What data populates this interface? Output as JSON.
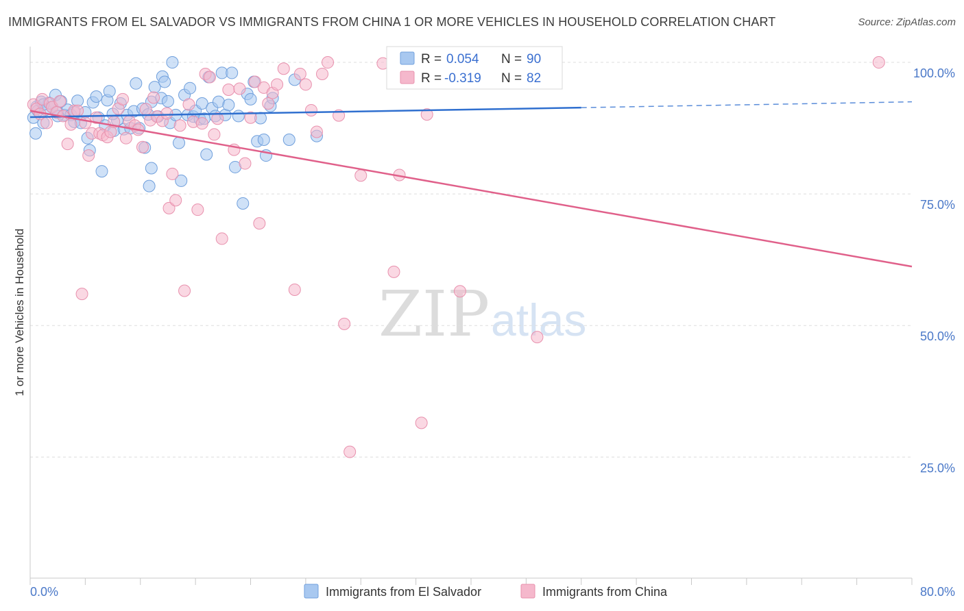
{
  "title": "IMMIGRANTS FROM EL SALVADOR VS IMMIGRANTS FROM CHINA 1 OR MORE VEHICLES IN HOUSEHOLD CORRELATION CHART",
  "source": "Source: ZipAtlas.com",
  "watermark": {
    "zip": "ZIP",
    "atlas": "atlas"
  },
  "colors": {
    "blue_fill": "#a8c8f0",
    "blue_stroke": "#6f9fdc",
    "blue_line": "#2f6fcf",
    "pink_fill": "#f5b8cc",
    "pink_stroke": "#e890ad",
    "pink_line": "#e0608a",
    "tick_label": "#4a78c8",
    "grid": "#dddddd"
  },
  "legend": {
    "rows": [
      {
        "r_label": "R =",
        "r_value": "0.054",
        "n_label": "N =",
        "n_value": "90"
      },
      {
        "r_label": "R =",
        "r_value": "-0.319",
        "n_label": "N =",
        "n_value": "82"
      }
    ]
  },
  "chart_data": {
    "type": "scatter",
    "title": "IMMIGRANTS FROM EL SALVADOR VS IMMIGRANTS FROM CHINA 1 OR MORE VEHICLES IN HOUSEHOLD CORRELATION CHART",
    "xlabel": "",
    "ylabel": "1 or more Vehicles in Household",
    "xlim": [
      0,
      80
    ],
    "ylim": [
      2,
      103
    ],
    "x_tick_labels": [
      "0.0%",
      "80.0%"
    ],
    "y_ticks": [
      25,
      50,
      75,
      100
    ],
    "y_tick_labels": [
      "25.0%",
      "50.0%",
      "75.0%",
      "100.0%"
    ],
    "grid": true,
    "legend_position": "top-center",
    "series": [
      {
        "name": "Immigrants from El Salvador",
        "color": "#a8c8f0",
        "r": 0.054,
        "n": 90,
        "trend": {
          "x": [
            0,
            50
          ],
          "y": [
            89.6,
            91.4
          ],
          "dashed_to": [
            80,
            92.5
          ]
        },
        "points": [
          [
            0.3,
            89.5
          ],
          [
            0.5,
            86.5
          ],
          [
            0.6,
            91.6
          ],
          [
            0.7,
            90.8
          ],
          [
            1.0,
            92.5
          ],
          [
            1.2,
            88.5
          ],
          [
            1.4,
            91.0
          ],
          [
            1.7,
            92.3
          ],
          [
            2.0,
            91.5
          ],
          [
            2.3,
            93.8
          ],
          [
            2.5,
            90.5
          ],
          [
            2.8,
            92.6
          ],
          [
            3.1,
            90.0
          ],
          [
            3.4,
            91.0
          ],
          [
            3.7,
            90.0
          ],
          [
            4.0,
            88.7
          ],
          [
            4.3,
            92.7
          ],
          [
            4.6,
            88.5
          ],
          [
            5.0,
            90.5
          ],
          [
            5.2,
            85.6
          ],
          [
            5.4,
            83.3
          ],
          [
            5.7,
            92.4
          ],
          [
            6.0,
            93.5
          ],
          [
            6.2,
            89.5
          ],
          [
            6.5,
            79.3
          ],
          [
            6.8,
            88.0
          ],
          [
            7.0,
            92.8
          ],
          [
            7.2,
            94.5
          ],
          [
            7.6,
            87.0
          ],
          [
            7.9,
            89.0
          ],
          [
            8.2,
            92.2
          ],
          [
            8.5,
            87.3
          ],
          [
            8.8,
            90.0
          ],
          [
            9.1,
            87.5
          ],
          [
            9.4,
            90.7
          ],
          [
            9.6,
            96.0
          ],
          [
            9.9,
            87.5
          ],
          [
            10.2,
            91.2
          ],
          [
            10.4,
            83.8
          ],
          [
            10.7,
            90.1
          ],
          [
            10.8,
            76.5
          ],
          [
            11.0,
            92.5
          ],
          [
            11.0,
            79.9
          ],
          [
            11.3,
            95.3
          ],
          [
            11.6,
            89.7
          ],
          [
            11.9,
            93.2
          ],
          [
            12.0,
            97.3
          ],
          [
            12.2,
            96.3
          ],
          [
            12.5,
            92.6
          ],
          [
            12.7,
            88.5
          ],
          [
            12.9,
            100.0
          ],
          [
            13.2,
            90.0
          ],
          [
            13.5,
            84.7
          ],
          [
            13.7,
            77.5
          ],
          [
            14.0,
            93.8
          ],
          [
            14.3,
            90.0
          ],
          [
            14.5,
            95.1
          ],
          [
            14.8,
            89.7
          ],
          [
            15.0,
            90.8
          ],
          [
            15.4,
            89.2
          ],
          [
            15.6,
            92.2
          ],
          [
            15.8,
            89.3
          ],
          [
            16.0,
            82.5
          ],
          [
            16.2,
            97.2
          ],
          [
            16.5,
            91.3
          ],
          [
            16.8,
            89.8
          ],
          [
            17.1,
            92.5
          ],
          [
            17.4,
            98.0
          ],
          [
            17.7,
            90.0
          ],
          [
            18.0,
            91.9
          ],
          [
            18.3,
            98.0
          ],
          [
            18.6,
            80.1
          ],
          [
            18.9,
            89.8
          ],
          [
            19.3,
            73.2
          ],
          [
            19.7,
            94.0
          ],
          [
            20.0,
            93.0
          ],
          [
            20.3,
            96.3
          ],
          [
            20.6,
            85.0
          ],
          [
            20.9,
            89.4
          ],
          [
            21.2,
            85.3
          ],
          [
            21.4,
            82.3
          ],
          [
            21.8,
            91.7
          ],
          [
            22.0,
            93.2
          ],
          [
            23.5,
            85.3
          ],
          [
            24.0,
            96.7
          ],
          [
            26.0,
            86.0
          ],
          [
            1.2,
            92.0
          ],
          [
            2.5,
            89.8
          ],
          [
            4.0,
            90.5
          ],
          [
            7.5,
            90.2
          ]
        ]
      },
      {
        "name": "Immigrants from China",
        "color": "#f5b8cc",
        "r": -0.319,
        "n": 82,
        "trend": {
          "x": [
            0,
            80
          ],
          "y": [
            90.8,
            61.2
          ]
        },
        "points": [
          [
            0.3,
            92.0
          ],
          [
            0.6,
            91.2
          ],
          [
            0.9,
            90.2
          ],
          [
            1.1,
            93.0
          ],
          [
            1.5,
            88.5
          ],
          [
            1.8,
            92.2
          ],
          [
            2.0,
            91.5
          ],
          [
            2.4,
            90.5
          ],
          [
            2.7,
            92.6
          ],
          [
            3.0,
            89.8
          ],
          [
            3.4,
            84.5
          ],
          [
            3.7,
            88.2
          ],
          [
            4.0,
            90.8
          ],
          [
            4.3,
            90.8
          ],
          [
            4.7,
            56.0
          ],
          [
            5.0,
            88.5
          ],
          [
            5.3,
            82.3
          ],
          [
            5.6,
            86.5
          ],
          [
            6.0,
            89.5
          ],
          [
            6.3,
            86.5
          ],
          [
            6.6,
            86.2
          ],
          [
            7.0,
            85.8
          ],
          [
            7.3,
            86.8
          ],
          [
            7.6,
            88.7
          ],
          [
            8.0,
            91.2
          ],
          [
            8.4,
            93.0
          ],
          [
            8.7,
            85.6
          ],
          [
            9.0,
            88.8
          ],
          [
            9.5,
            88.0
          ],
          [
            9.8,
            87.2
          ],
          [
            10.2,
            83.9
          ],
          [
            10.5,
            91.1
          ],
          [
            10.9,
            89.0
          ],
          [
            11.2,
            93.3
          ],
          [
            11.5,
            89.7
          ],
          [
            12.0,
            88.9
          ],
          [
            12.4,
            90.3
          ],
          [
            12.6,
            72.3
          ],
          [
            12.9,
            78.8
          ],
          [
            13.2,
            73.8
          ],
          [
            13.6,
            88.0
          ],
          [
            14.0,
            56.6
          ],
          [
            14.4,
            92.0
          ],
          [
            14.8,
            88.7
          ],
          [
            15.2,
            72.0
          ],
          [
            15.6,
            88.4
          ],
          [
            15.9,
            97.8
          ],
          [
            16.3,
            97.2
          ],
          [
            16.7,
            86.3
          ],
          [
            17.0,
            89.3
          ],
          [
            17.4,
            66.5
          ],
          [
            18.0,
            94.8
          ],
          [
            18.5,
            83.4
          ],
          [
            19.0,
            95.0
          ],
          [
            19.5,
            80.8
          ],
          [
            20.0,
            89.5
          ],
          [
            20.4,
            96.3
          ],
          [
            20.8,
            69.4
          ],
          [
            21.2,
            95.2
          ],
          [
            21.6,
            92.2
          ],
          [
            22.0,
            94.2
          ],
          [
            22.4,
            95.8
          ],
          [
            23.0,
            98.8
          ],
          [
            24.0,
            56.8
          ],
          [
            24.5,
            97.8
          ],
          [
            25.0,
            95.8
          ],
          [
            25.5,
            90.9
          ],
          [
            26.0,
            86.8
          ],
          [
            26.5,
            97.8
          ],
          [
            27.0,
            100.0
          ],
          [
            28.0,
            89.9
          ],
          [
            28.5,
            50.3
          ],
          [
            29.0,
            26.0
          ],
          [
            30.0,
            78.5
          ],
          [
            32.0,
            99.8
          ],
          [
            33.0,
            60.2
          ],
          [
            33.5,
            78.6
          ],
          [
            35.5,
            31.5
          ],
          [
            36.0,
            90.1
          ],
          [
            39.0,
            56.5
          ],
          [
            46.0,
            47.8
          ],
          [
            77.0,
            100.0
          ]
        ]
      }
    ]
  },
  "bottom_legend": [
    {
      "label": "Immigrants from El Salvador"
    },
    {
      "label": "Immigrants from China"
    }
  ]
}
